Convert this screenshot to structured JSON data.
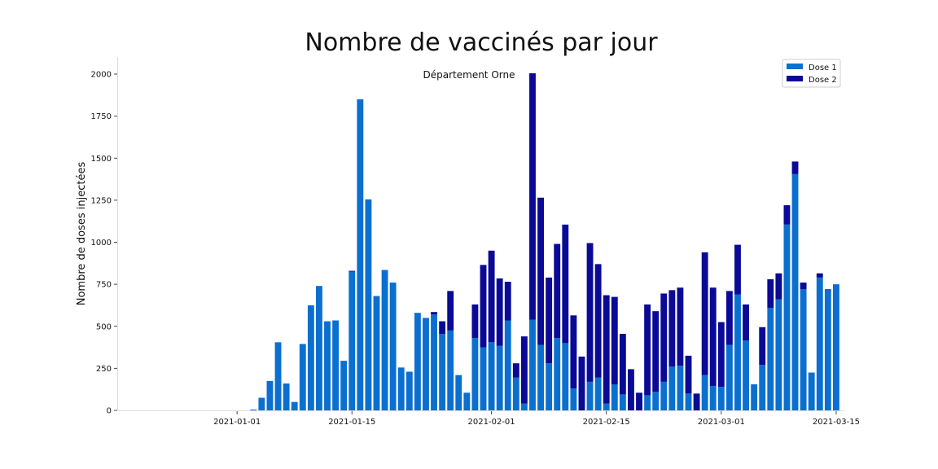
{
  "chart_data": {
    "type": "bar",
    "stacked": true,
    "title": "Nombre de vaccinés par jour",
    "subtitle": "Département Orne",
    "xlabel": "",
    "ylabel": "Nombre de doses injectées",
    "ylim": [
      0,
      2100
    ],
    "yticks": [
      0,
      250,
      500,
      750,
      1000,
      1250,
      1500,
      1750,
      2000
    ],
    "x_start_date": "2020-12-28",
    "x_range_days": [
      -10.5,
      78
    ],
    "xticks": [
      {
        "label": "2021-01-01",
        "day": 4
      },
      {
        "label": "2021-01-15",
        "day": 18
      },
      {
        "label": "2021-02-01",
        "day": 35
      },
      {
        "label": "2021-02-15",
        "day": 49
      },
      {
        "label": "2021-03-01",
        "day": 63
      },
      {
        "label": "2021-03-15",
        "day": 77
      }
    ],
    "legend_position": "top-right",
    "grid": false,
    "colors": {
      "dose1": "#0b6fd0",
      "dose2": "#0a0a96"
    },
    "series": [
      {
        "name": "Dose 1",
        "values": [
          5,
          75,
          175,
          405,
          160,
          50,
          395,
          625,
          740,
          530,
          535,
          295,
          825,
          1850,
          1255,
          680,
          835,
          760,
          255,
          230,
          580,
          550,
          570,
          455,
          475,
          210,
          105,
          430,
          375,
          405,
          385,
          535,
          195,
          40,
          540,
          390,
          280,
          430,
          400,
          130,
          0,
          170,
          195,
          40,
          155,
          95,
          0,
          0,
          90,
          110,
          170,
          260,
          265,
          100,
          0,
          210,
          145,
          140,
          390,
          690,
          415,
          155,
          270,
          610,
          660,
          1105,
          1405,
          720,
          225,
          790,
          715,
          750
        ]
      },
      {
        "name": "Dose 2",
        "values": [
          0,
          0,
          0,
          0,
          0,
          0,
          0,
          0,
          0,
          0,
          0,
          0,
          5,
          0,
          0,
          0,
          0,
          0,
          0,
          0,
          0,
          0,
          15,
          75,
          235,
          0,
          0,
          200,
          490,
          545,
          400,
          230,
          85,
          400,
          1465,
          875,
          510,
          560,
          705,
          435,
          320,
          825,
          675,
          645,
          520,
          360,
          245,
          105,
          540,
          480,
          525,
          455,
          465,
          225,
          100,
          730,
          585,
          385,
          320,
          295,
          215,
          0,
          225,
          170,
          155,
          115,
          75,
          40,
          0,
          25,
          5,
          0
        ]
      }
    ]
  }
}
